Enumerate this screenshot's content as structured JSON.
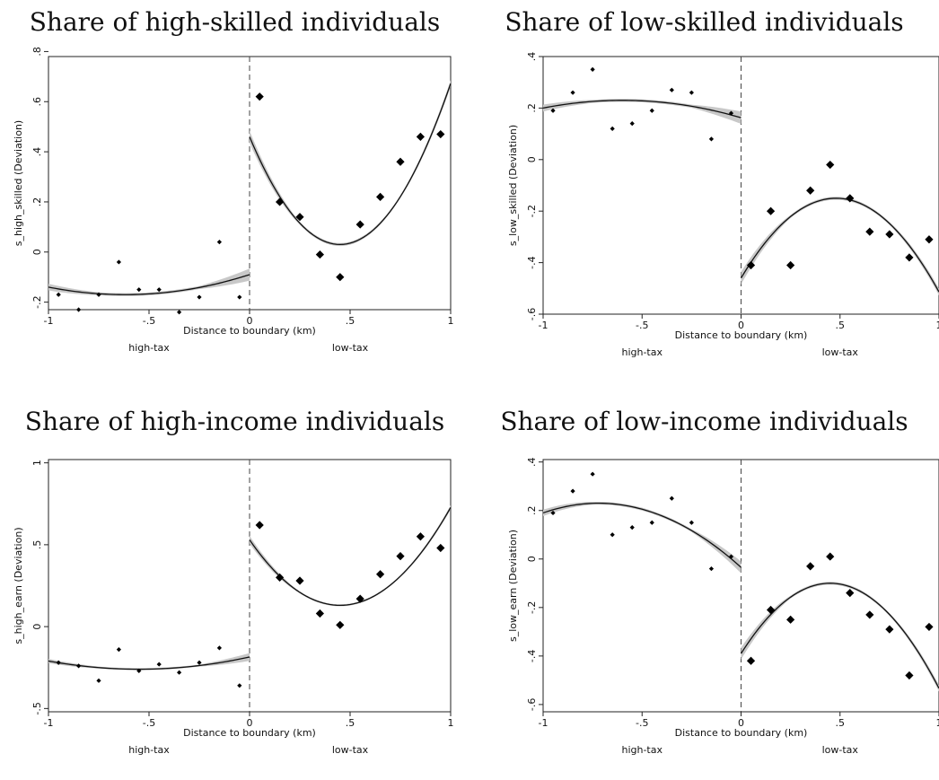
{
  "common": {
    "xlabel": "Distance to boundary (km)",
    "side_left": "high-tax",
    "side_right": "low-tax",
    "xticks": [
      -1,
      -0.5,
      0,
      0.5,
      1
    ],
    "xtick_labels": [
      "-1",
      "-.5",
      "0",
      ".5",
      "1"
    ]
  },
  "chart_data": [
    {
      "type": "scatter",
      "title": "Share of high-skilled individuals",
      "xlabel": "Distance to boundary (km)",
      "ylabel": "s_high_skilled (Deviation)",
      "xlim": [
        -1,
        1
      ],
      "ylim": [
        -0.23,
        0.78
      ],
      "yticks": [
        -0.2,
        0,
        0.2,
        0.4,
        0.6,
        0.8
      ],
      "ytick_labels": [
        "-.2",
        "0",
        ".2",
        ".4",
        ".6",
        ".8"
      ],
      "cutoff": 0,
      "left_points": [
        [
          -0.95,
          -0.17
        ],
        [
          -0.85,
          -0.23
        ],
        [
          -0.75,
          -0.17
        ],
        [
          -0.65,
          -0.04
        ],
        [
          -0.55,
          -0.15
        ],
        [
          -0.45,
          -0.15
        ],
        [
          -0.35,
          -0.24
        ],
        [
          -0.25,
          -0.18
        ],
        [
          -0.15,
          0.04
        ],
        [
          -0.05,
          -0.18
        ]
      ],
      "right_points": [
        [
          0.05,
          0.62
        ],
        [
          0.15,
          0.2
        ],
        [
          0.25,
          0.14
        ],
        [
          0.35,
          -0.01
        ],
        [
          0.45,
          -0.1
        ],
        [
          0.55,
          0.11
        ],
        [
          0.65,
          0.22
        ],
        [
          0.75,
          0.36
        ],
        [
          0.85,
          0.46
        ],
        [
          0.95,
          0.47
        ]
      ],
      "left_fit": [
        -1,
        -0.14,
        -0.62,
        -0.17,
        0,
        -0.09
      ],
      "right_fit": [
        0,
        0.46,
        0.45,
        0.03,
        1,
        0.79
      ]
    },
    {
      "type": "scatter",
      "title": "Share of low-skilled individuals",
      "xlabel": "Distance to boundary (km)",
      "ylabel": "s_low_skilled (Deviation)",
      "xlim": [
        -1,
        1
      ],
      "ylim": [
        -0.6,
        0.4
      ],
      "yticks": [
        -0.6,
        -0.4,
        -0.2,
        0,
        0.2,
        0.4
      ],
      "ytick_labels": [
        "-.6",
        "-.4",
        "-.2",
        "0",
        ".2",
        ".4"
      ],
      "cutoff": 0,
      "left_points": [
        [
          -0.95,
          0.19
        ],
        [
          -0.85,
          0.26
        ],
        [
          -0.75,
          0.35
        ],
        [
          -0.65,
          0.12
        ],
        [
          -0.55,
          0.14
        ],
        [
          -0.45,
          0.19
        ],
        [
          -0.35,
          0.27
        ],
        [
          -0.25,
          0.26
        ],
        [
          -0.15,
          0.08
        ],
        [
          -0.05,
          0.18
        ]
      ],
      "right_points": [
        [
          0.05,
          -0.41
        ],
        [
          0.15,
          -0.2
        ],
        [
          0.25,
          -0.41
        ],
        [
          0.35,
          -0.12
        ],
        [
          0.45,
          -0.02
        ],
        [
          0.55,
          -0.15
        ],
        [
          0.65,
          -0.28
        ],
        [
          0.75,
          -0.29
        ],
        [
          0.85,
          -0.38
        ],
        [
          0.95,
          -0.31
        ]
      ],
      "left_fit": [
        -1,
        0.2,
        -0.6,
        0.23,
        0,
        0.15
      ],
      "right_fit": [
        0,
        -0.46,
        0.48,
        -0.15,
        1,
        -0.51
      ]
    },
    {
      "type": "scatter",
      "title": "Share of high-income individuals",
      "xlabel": "Distance to boundary (km)",
      "ylabel": "s_high_earn (Deviation)",
      "xlim": [
        -1,
        1
      ],
      "ylim": [
        -0.52,
        1.02
      ],
      "yticks": [
        -0.5,
        0,
        0.5,
        1
      ],
      "ytick_labels": [
        "-.5",
        "0",
        ".5",
        "1"
      ],
      "cutoff": 0,
      "left_points": [
        [
          -0.95,
          -0.22
        ],
        [
          -0.85,
          -0.24
        ],
        [
          -0.75,
          -0.33
        ],
        [
          -0.65,
          -0.14
        ],
        [
          -0.55,
          -0.27
        ],
        [
          -0.45,
          -0.23
        ],
        [
          -0.35,
          -0.28
        ],
        [
          -0.25,
          -0.22
        ],
        [
          -0.15,
          -0.13
        ],
        [
          -0.05,
          -0.36
        ]
      ],
      "right_points": [
        [
          0.05,
          0.62
        ],
        [
          0.15,
          0.3
        ],
        [
          0.25,
          0.28
        ],
        [
          0.35,
          0.08
        ],
        [
          0.45,
          0.01
        ],
        [
          0.55,
          0.17
        ],
        [
          0.65,
          0.32
        ],
        [
          0.75,
          0.43
        ],
        [
          0.85,
          0.55
        ],
        [
          0.95,
          0.48
        ]
      ],
      "left_fit": [
        -1,
        -0.21,
        -0.55,
        -0.26,
        0,
        -0.15
      ],
      "right_fit": [
        0,
        0.53,
        0.45,
        0.13,
        1,
        0.81
      ]
    },
    {
      "type": "scatter",
      "title": "Share of low-income individuals",
      "xlabel": "Distance to boundary (km)",
      "ylabel": "s_low_earn (Deviation)",
      "xlim": [
        -1,
        1
      ],
      "ylim": [
        -0.63,
        0.41
      ],
      "yticks": [
        -0.6,
        -0.4,
        -0.2,
        0,
        0.2,
        0.4
      ],
      "ytick_labels": [
        "-.6",
        "-.4",
        "-.2",
        "0",
        ".2",
        ".4"
      ],
      "cutoff": 0,
      "left_points": [
        [
          -0.95,
          0.19
        ],
        [
          -0.85,
          0.28
        ],
        [
          -0.75,
          0.35
        ],
        [
          -0.65,
          0.1
        ],
        [
          -0.55,
          0.13
        ],
        [
          -0.45,
          0.15
        ],
        [
          -0.35,
          0.25
        ],
        [
          -0.25,
          0.15
        ],
        [
          -0.15,
          -0.04
        ],
        [
          -0.05,
          0.01
        ]
      ],
      "right_points": [
        [
          0.05,
          -0.42
        ],
        [
          0.15,
          -0.21
        ],
        [
          0.25,
          -0.25
        ],
        [
          0.35,
          -0.03
        ],
        [
          0.45,
          0.01
        ],
        [
          0.55,
          -0.14
        ],
        [
          0.65,
          -0.23
        ],
        [
          0.75,
          -0.29
        ],
        [
          0.85,
          -0.48
        ],
        [
          0.95,
          -0.28
        ]
      ],
      "left_fit": [
        -1,
        0.19,
        -0.72,
        0.23,
        0,
        -0.05
      ],
      "right_fit": [
        0,
        -0.39,
        0.45,
        -0.1,
        1,
        -0.59
      ]
    }
  ]
}
